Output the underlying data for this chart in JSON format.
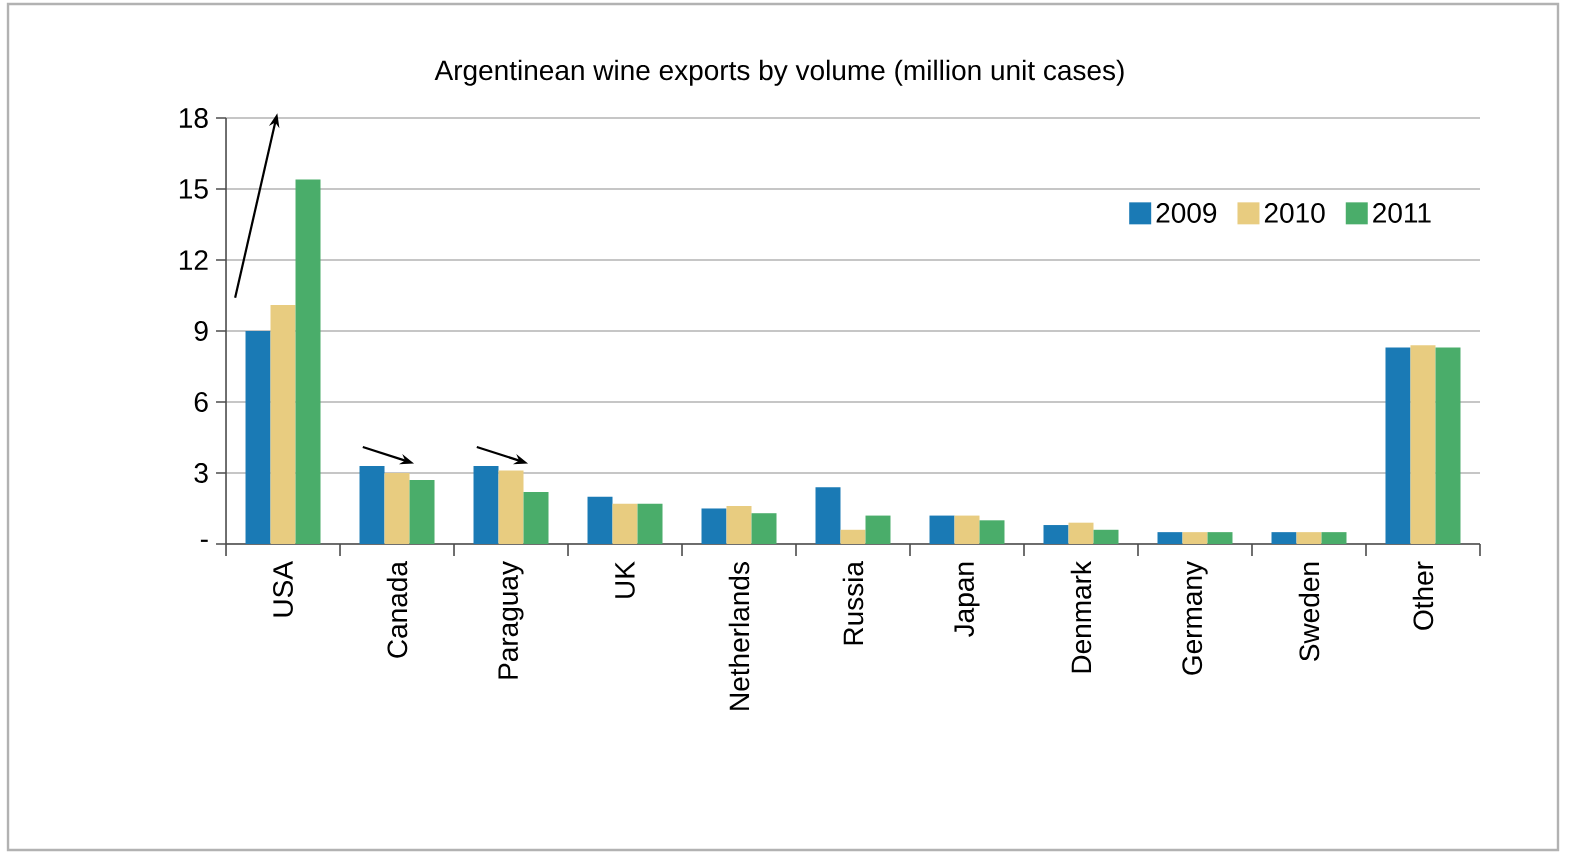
{
  "chart_data": {
    "type": "bar",
    "title": "Argentinean wine exports by volume (million unit cases)",
    "categories": [
      "USA",
      "Canada",
      "Paraguay",
      "UK",
      "Netherlands",
      "Russia",
      "Japan",
      "Denmark",
      "Germany",
      "Sweden",
      "Other"
    ],
    "series": [
      {
        "name": "2009",
        "color": "#1a7ab5",
        "values": [
          9.0,
          3.3,
          3.3,
          2.0,
          1.5,
          2.4,
          1.2,
          0.8,
          0.5,
          0.5,
          8.3
        ]
      },
      {
        "name": "2010",
        "color": "#e8cc80",
        "values": [
          10.1,
          3.0,
          3.1,
          1.7,
          1.6,
          0.6,
          1.2,
          0.9,
          0.5,
          0.5,
          8.4
        ]
      },
      {
        "name": "2011",
        "color": "#4aad6a",
        "values": [
          15.4,
          2.7,
          2.2,
          1.7,
          1.3,
          1.2,
          1.0,
          0.6,
          0.5,
          0.5,
          8.3
        ]
      }
    ],
    "ylim": [
      0,
      18
    ],
    "yticks": [
      {
        "value": 0,
        "label": "-"
      },
      3,
      6,
      9,
      12,
      15,
      18
    ],
    "grid": "y",
    "legend": "top right"
  }
}
